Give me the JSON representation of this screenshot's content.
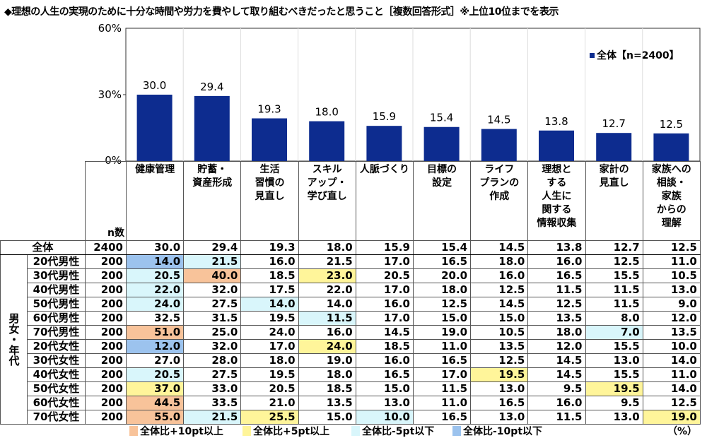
{
  "title": "◆理想の人生の実現のために十分な時間や労力を費やして取り組むべきだったと思うこと［複数回答形式］※上位10位までを表示",
  "chart_data": {
    "type": "bar",
    "categories": [
      "健康管理",
      "貯蓄・資産形成",
      "生活習慣の見直し",
      "スキルアップ・学び直し",
      "人脈づくり",
      "目標の設定",
      "ライフプランの作成",
      "理想とする人生に関する情報収集",
      "家計の見直し",
      "家族への相談・家族からの理解"
    ],
    "series": [
      {
        "name": "全体【n=2400】",
        "values": [
          30.0,
          29.4,
          19.3,
          18.0,
          15.9,
          15.4,
          14.5,
          13.8,
          12.7,
          12.5
        ]
      }
    ],
    "ylim": [
      0,
      60
    ],
    "yticks": [
      "60%",
      "30%",
      "0%"
    ],
    "bar_color": "#0D2C8F",
    "legend_position": "top-right",
    "grid": "vertical"
  },
  "table": {
    "header_lines": [
      [
        "健康管理"
      ],
      [
        "貯蓄・",
        "資産形成"
      ],
      [
        "生活",
        "習慣の",
        "見直し"
      ],
      [
        "スキル",
        "アップ・",
        "学び直し"
      ],
      [
        "人脈づくり"
      ],
      [
        "目標の",
        "設定"
      ],
      [
        "ライフ",
        "プランの",
        "作成"
      ],
      [
        "理想と",
        "する",
        "人生に",
        "関する",
        "情報収集"
      ],
      [
        "家計の",
        "見直し"
      ],
      [
        "家族への",
        "相談・",
        "家族",
        "からの",
        "理解"
      ]
    ],
    "n_label": "n数",
    "group_label": "男女・年代",
    "total": {
      "label": "全体",
      "n": "2400",
      "values": [
        "30.0",
        "29.4",
        "19.3",
        "18.0",
        "15.9",
        "15.4",
        "14.5",
        "13.8",
        "12.7",
        "12.5"
      ]
    },
    "rows": [
      {
        "label": "20代男性",
        "n": "200",
        "values": [
          "14.0",
          "21.5",
          "16.0",
          "21.5",
          "17.0",
          "16.5",
          "18.0",
          "16.0",
          "12.5",
          "11.0"
        ],
        "hl": [
          "-10",
          "-5",
          "",
          "",
          "",
          "",
          "",
          "",
          "",
          ""
        ]
      },
      {
        "label": "30代男性",
        "n": "200",
        "values": [
          "20.5",
          "40.0",
          "18.5",
          "23.0",
          "20.5",
          "20.0",
          "16.0",
          "16.5",
          "15.5",
          "10.5"
        ],
        "hl": [
          "-5",
          "+10",
          "",
          "+5",
          "",
          "",
          "",
          "",
          "",
          ""
        ]
      },
      {
        "label": "40代男性",
        "n": "200",
        "values": [
          "22.0",
          "32.0",
          "17.5",
          "22.0",
          "17.0",
          "18.0",
          "12.5",
          "11.5",
          "11.5",
          "13.0"
        ],
        "hl": [
          "-5",
          "",
          "",
          "",
          "",
          "",
          "",
          "",
          "",
          ""
        ]
      },
      {
        "label": "50代男性",
        "n": "200",
        "values": [
          "24.0",
          "27.5",
          "14.0",
          "14.0",
          "16.0",
          "12.5",
          "14.5",
          "12.5",
          "11.5",
          "9.0"
        ],
        "hl": [
          "-5",
          "",
          "-5",
          "",
          "",
          "",
          "",
          "",
          "",
          ""
        ]
      },
      {
        "label": "60代男性",
        "n": "200",
        "values": [
          "32.5",
          "31.5",
          "19.5",
          "11.5",
          "17.0",
          "15.0",
          "15.0",
          "13.5",
          "8.0",
          "12.0"
        ],
        "hl": [
          "",
          "",
          "",
          "-5",
          "",
          "",
          "",
          "",
          "",
          ""
        ]
      },
      {
        "label": "70代男性",
        "n": "200",
        "values": [
          "51.0",
          "25.0",
          "24.0",
          "16.0",
          "14.5",
          "19.0",
          "10.5",
          "18.0",
          "7.0",
          "13.5"
        ],
        "hl": [
          "+10",
          "",
          "",
          "",
          "",
          "",
          "",
          "",
          "-5",
          ""
        ]
      },
      {
        "label": "20代女性",
        "n": "200",
        "values": [
          "12.0",
          "32.0",
          "17.0",
          "24.0",
          "18.5",
          "11.0",
          "13.5",
          "12.0",
          "15.5",
          "10.0"
        ],
        "hl": [
          "-10",
          "",
          "",
          "+5",
          "",
          "",
          "",
          "",
          "",
          ""
        ]
      },
      {
        "label": "30代女性",
        "n": "200",
        "values": [
          "27.0",
          "28.0",
          "18.0",
          "19.0",
          "16.0",
          "16.5",
          "12.5",
          "14.5",
          "13.0",
          "14.0"
        ],
        "hl": [
          "",
          "",
          "",
          "",
          "",
          "",
          "",
          "",
          "",
          ""
        ]
      },
      {
        "label": "40代女性",
        "n": "200",
        "values": [
          "20.5",
          "27.5",
          "19.5",
          "18.0",
          "16.5",
          "17.0",
          "19.5",
          "14.5",
          "15.5",
          "11.0"
        ],
        "hl": [
          "-5",
          "",
          "",
          "",
          "",
          "",
          "+5",
          "",
          "",
          ""
        ]
      },
      {
        "label": "50代女性",
        "n": "200",
        "values": [
          "37.0",
          "33.0",
          "20.5",
          "18.5",
          "15.0",
          "11.5",
          "13.0",
          "9.5",
          "19.5",
          "14.0"
        ],
        "hl": [
          "+5",
          "",
          "",
          "",
          "",
          "",
          "",
          "",
          "+5",
          ""
        ]
      },
      {
        "label": "60代女性",
        "n": "200",
        "values": [
          "44.5",
          "33.5",
          "21.0",
          "13.5",
          "13.0",
          "11.0",
          "16.5",
          "16.0",
          "9.5",
          "12.5"
        ],
        "hl": [
          "+10",
          "",
          "",
          "",
          "",
          "",
          "",
          "",
          "",
          ""
        ]
      },
      {
        "label": "70代女性",
        "n": "200",
        "values": [
          "55.0",
          "21.5",
          "25.5",
          "15.0",
          "10.0",
          "16.5",
          "13.0",
          "11.5",
          "13.0",
          "19.0"
        ],
        "hl": [
          "+10",
          "-5",
          "+5",
          "",
          "-5",
          "",
          "",
          "",
          "",
          "+5"
        ]
      }
    ]
  },
  "legend": {
    "items": [
      {
        "label": "全体比+10pt以上",
        "color": "#F8C39A"
      },
      {
        "label": "全体比+5pt以上",
        "color": "#FFF59A"
      },
      {
        "label": "全体比-5pt以下",
        "color": "#D9F6FB"
      },
      {
        "label": "全体比-10pt以下",
        "color": "#9CC3EE"
      }
    ],
    "unit": "（%）"
  }
}
